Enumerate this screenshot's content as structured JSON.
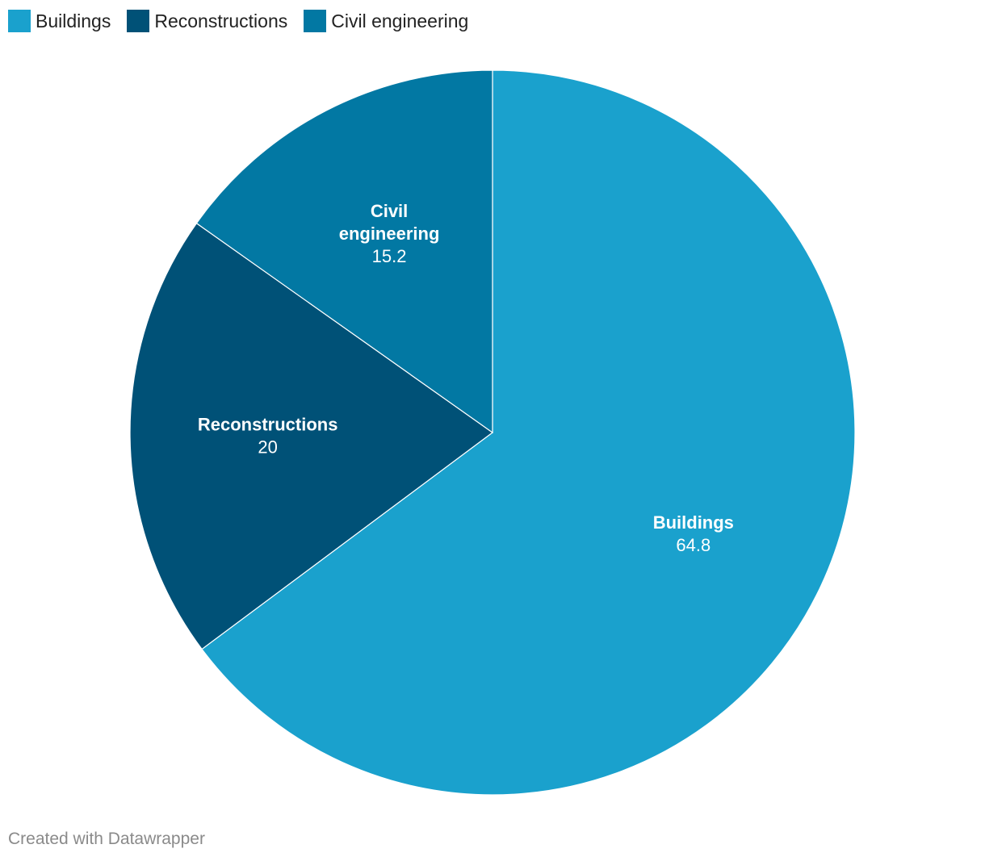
{
  "chart_data": {
    "type": "pie",
    "slices": [
      {
        "name": "Buildings",
        "label_lines": [
          "Buildings"
        ],
        "value": 64.8,
        "value_text": "64.8",
        "color": "#1aa1cd"
      },
      {
        "name": "Reconstructions",
        "label_lines": [
          "Reconstructions"
        ],
        "value": 20,
        "value_text": "20",
        "color": "#005177"
      },
      {
        "name": "Civil engineering",
        "label_lines": [
          "Civil",
          "engineering"
        ],
        "value": 15.2,
        "value_text": "15.2",
        "color": "#0278a3"
      }
    ],
    "legend_position": "top-left"
  },
  "legend": {
    "items": [
      {
        "label": "Buildings",
        "color": "#1aa1cd"
      },
      {
        "label": "Reconstructions",
        "color": "#005177"
      },
      {
        "label": "Civil engineering",
        "color": "#0278a3"
      }
    ]
  },
  "footer": {
    "credit": "Created with Datawrapper"
  }
}
